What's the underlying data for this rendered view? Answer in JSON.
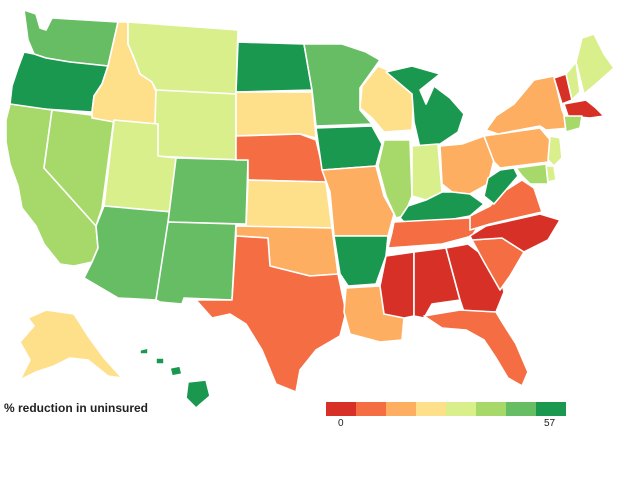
{
  "legend": {
    "title": "% reduction in uninsured",
    "min_label": "0",
    "max_label": "57",
    "colors": [
      "#d73027",
      "#f46d43",
      "#fdae61",
      "#fee08b",
      "#d9ef8b",
      "#a6d96a",
      "#66bd63",
      "#1a9850"
    ]
  },
  "states": [
    {
      "id": "WA",
      "bin": 6
    },
    {
      "id": "OR",
      "bin": 7
    },
    {
      "id": "CA",
      "bin": 5
    },
    {
      "id": "NV",
      "bin": 5
    },
    {
      "id": "ID",
      "bin": 3
    },
    {
      "id": "MT",
      "bin": 4
    },
    {
      "id": "WY",
      "bin": 4
    },
    {
      "id": "UT",
      "bin": 4
    },
    {
      "id": "AZ",
      "bin": 6
    },
    {
      "id": "CO",
      "bin": 6
    },
    {
      "id": "NM",
      "bin": 6
    },
    {
      "id": "ND",
      "bin": 7
    },
    {
      "id": "SD",
      "bin": 3
    },
    {
      "id": "NE",
      "bin": 1
    },
    {
      "id": "KS",
      "bin": 3
    },
    {
      "id": "OK",
      "bin": 2
    },
    {
      "id": "TX",
      "bin": 1
    },
    {
      "id": "MN",
      "bin": 6
    },
    {
      "id": "IA",
      "bin": 7
    },
    {
      "id": "MO",
      "bin": 2
    },
    {
      "id": "AR",
      "bin": 7
    },
    {
      "id": "LA",
      "bin": 2
    },
    {
      "id": "WI",
      "bin": 3
    },
    {
      "id": "IL",
      "bin": 5
    },
    {
      "id": "MI",
      "bin": 7
    },
    {
      "id": "IN",
      "bin": 4
    },
    {
      "id": "OH",
      "bin": 2
    },
    {
      "id": "KY",
      "bin": 7
    },
    {
      "id": "TN",
      "bin": 1
    },
    {
      "id": "MS",
      "bin": 0
    },
    {
      "id": "AL",
      "bin": 0
    },
    {
      "id": "GA",
      "bin": 0
    },
    {
      "id": "FL",
      "bin": 1
    },
    {
      "id": "SC",
      "bin": 1
    },
    {
      "id": "NC",
      "bin": 0
    },
    {
      "id": "VA",
      "bin": 1
    },
    {
      "id": "WV",
      "bin": 7
    },
    {
      "id": "PA",
      "bin": 2
    },
    {
      "id": "NY",
      "bin": 2
    },
    {
      "id": "ME",
      "bin": 4
    },
    {
      "id": "VT",
      "bin": 0
    },
    {
      "id": "NH",
      "bin": 4
    },
    {
      "id": "MA",
      "bin": 0
    },
    {
      "id": "CT",
      "bin": 5
    },
    {
      "id": "NJ",
      "bin": 4
    },
    {
      "id": "DE",
      "bin": 4
    },
    {
      "id": "MD",
      "bin": 5
    },
    {
      "id": "AK",
      "bin": 3
    },
    {
      "id": "HI",
      "bin": 7
    }
  ]
}
